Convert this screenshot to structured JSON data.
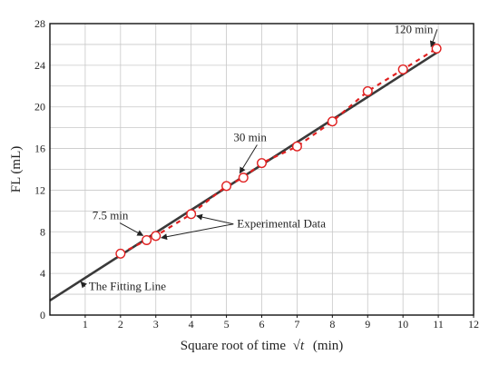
{
  "chart_data": {
    "type": "scatter",
    "xlabel": "Square root of time",
    "xlabel_symbol": "√t",
    "xlabel_unit": "(min)",
    "ylabel": "FL (mL)",
    "xlim": [
      0,
      12
    ],
    "ylim": [
      0,
      28
    ],
    "x_ticks": [
      0,
      1,
      2,
      3,
      4,
      5,
      6,
      7,
      8,
      9,
      10,
      11,
      12
    ],
    "y_ticks": [
      0,
      4,
      8,
      12,
      16,
      20,
      24,
      28
    ],
    "x_tick_labels": [
      "1",
      "2",
      "3",
      "4",
      "5",
      "6",
      "7",
      "8",
      "9",
      "10",
      "11",
      "12"
    ],
    "y_tick_labels": [
      "0",
      "4",
      "8",
      "12",
      "16",
      "20",
      "24",
      "28"
    ],
    "grid": true,
    "series": [
      {
        "kind": "points",
        "marker": "open-circle",
        "color": "#e02020",
        "x": [
          2.0,
          2.74,
          3.0,
          4.0,
          5.0,
          5.48,
          6.0,
          7.0,
          8.0,
          9.0,
          10.0,
          10.95
        ],
        "y": [
          5.9,
          7.2,
          7.6,
          9.7,
          12.4,
          13.2,
          14.6,
          16.2,
          18.6,
          21.5,
          23.6,
          25.6
        ]
      },
      {
        "kind": "dashed-line",
        "color": "#e02020",
        "x": [
          2.0,
          2.74,
          3.0,
          4.0,
          5.0,
          5.48,
          6.0,
          7.0,
          8.0,
          9.0,
          10.0,
          10.95
        ],
        "y": [
          5.9,
          7.2,
          7.6,
          9.7,
          12.4,
          13.2,
          14.6,
          16.2,
          18.6,
          21.5,
          23.6,
          25.6
        ]
      },
      {
        "kind": "fit-line",
        "color": "#3a3a3a",
        "x": [
          0,
          11
        ],
        "y": [
          1.4,
          25.3
        ]
      }
    ],
    "annotations": [
      {
        "text": "120 min",
        "target": [
          10.95,
          25.6
        ],
        "label_at": [
          9.75,
          27.1
        ]
      },
      {
        "text": "30 min",
        "target": [
          5.48,
          13.2
        ],
        "label_at": [
          5.2,
          16.7
        ]
      },
      {
        "text": "7.5 min",
        "target": [
          2.74,
          7.2
        ],
        "label_at": [
          1.2,
          9.2
        ]
      },
      {
        "text": "Experimental Data",
        "targets": [
          [
            3.0,
            7.6
          ],
          [
            4.0,
            9.7
          ]
        ],
        "label_at": [
          5.3,
          8.4
        ]
      },
      {
        "text": "The Fitting Line",
        "target": [
          0.8,
          3.2
        ],
        "label_at": [
          1.1,
          2.4
        ]
      }
    ]
  }
}
